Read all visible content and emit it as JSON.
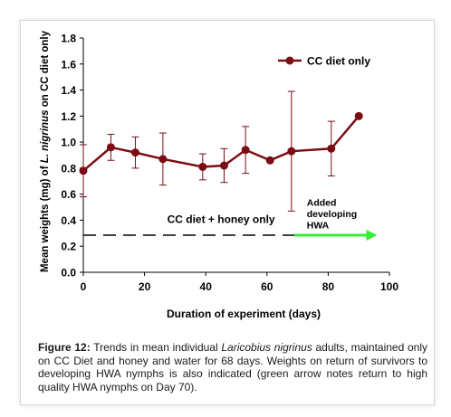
{
  "chart_data": {
    "type": "line",
    "ylabel_prefix": "Mean weights (mg) of ",
    "ylabel_species": "L. nigrinus",
    "ylabel_suffix": " on CC diet only",
    "xlabel": "Duration of experiment (days)",
    "xlim": [
      0,
      100
    ],
    "ylim": [
      0,
      1.8
    ],
    "xticks": [
      0,
      20,
      40,
      60,
      80,
      100
    ],
    "yticks": [
      "0.0",
      "0.2",
      "0.4",
      "0.6",
      "0.8",
      "1.0",
      "1.2",
      "1.4",
      "1.6",
      "1.8"
    ],
    "series": [
      {
        "name": "CC diet only",
        "color": "#7b0d14",
        "points": [
          {
            "x": 0,
            "y": 0.78,
            "lo": 0.58,
            "hi": 0.98
          },
          {
            "x": 9,
            "y": 0.96,
            "lo": 0.86,
            "hi": 1.06
          },
          {
            "x": 17,
            "y": 0.92,
            "lo": 0.8,
            "hi": 1.04
          },
          {
            "x": 26,
            "y": 0.87,
            "lo": 0.67,
            "hi": 1.07
          },
          {
            "x": 39,
            "y": 0.81,
            "lo": 0.71,
            "hi": 0.91
          },
          {
            "x": 46,
            "y": 0.82,
            "lo": 0.69,
            "hi": 0.95
          },
          {
            "x": 53,
            "y": 0.94,
            "lo": 0.76,
            "hi": 1.12
          },
          {
            "x": 61,
            "y": 0.86,
            "lo": 0.86,
            "hi": 0.86
          },
          {
            "x": 68,
            "y": 0.93,
            "lo": 0.47,
            "hi": 1.39
          },
          {
            "x": 81,
            "y": 0.95,
            "lo": 0.74,
            "hi": 1.16
          },
          {
            "x": 90,
            "y": 1.2,
            "lo": 1.2,
            "hi": 1.2
          }
        ]
      }
    ],
    "legend_position": "top-right",
    "annotations": [
      {
        "text": "CC diet + honey only",
        "x": 45,
        "y": 0.38
      },
      {
        "text_lines": [
          "Added",
          "developing",
          "HWA"
        ],
        "x": 73,
        "y": 0.51
      }
    ],
    "dashed_line": {
      "x_start": 0,
      "x_end": 69,
      "y": 0.285,
      "color": "#000000"
    },
    "green_arrow": {
      "x_start": 69,
      "x_end": 96,
      "y": 0.285,
      "color": "#33ee33"
    }
  },
  "caption": {
    "label": "Figure 12:",
    "text_before": " Trends in mean individual ",
    "species": "Laricobius nigrinus",
    "text_after": " adults, maintained only on CC Diet and honey and water for 68 days. Weights on return of survivors to developing HWA nymphs is also indicated (green arrow notes return to high quality HWA nymphs on Day 70)."
  }
}
